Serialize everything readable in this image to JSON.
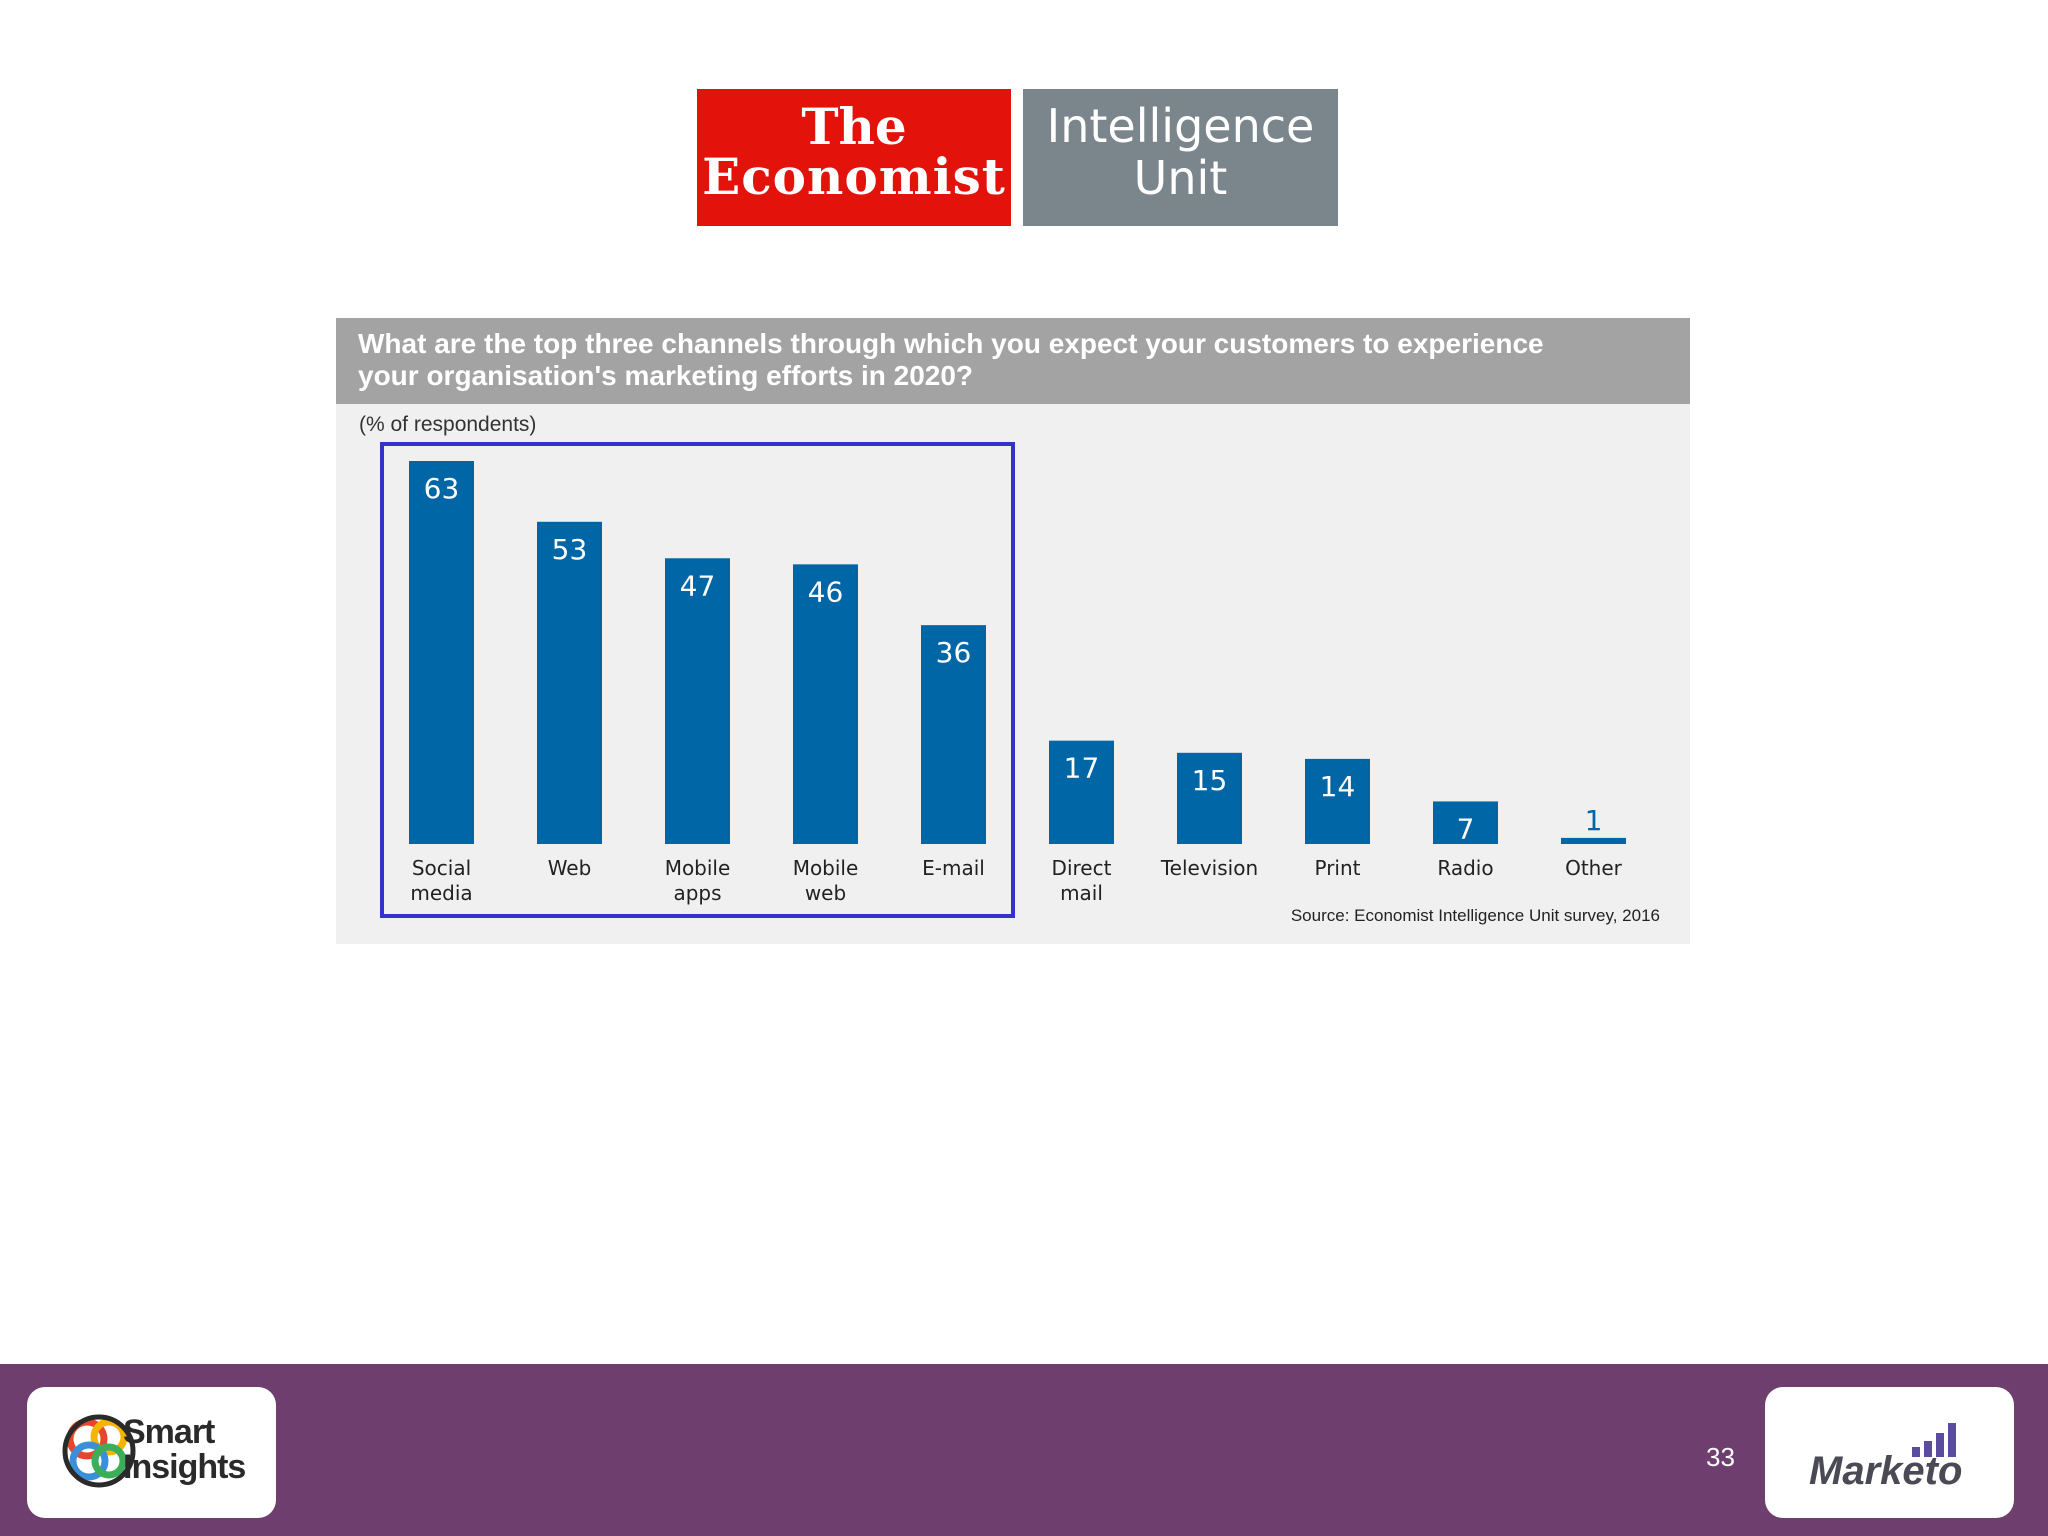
{
  "logo": {
    "left_line1": "The",
    "left_line2": "Economist",
    "right_line1": "Intelligence",
    "right_line2": "Unit",
    "red": "#e3120b",
    "grey": "#7b868c"
  },
  "chart_data": {
    "type": "bar",
    "title_line1": "What are the top three channels through which you expect your customers to experience",
    "title_line2": "your organisation's marketing efforts in 2020?",
    "unit_label": "(% of respondents)",
    "categories": [
      [
        "Social",
        "media"
      ],
      [
        "Web"
      ],
      [
        "Mobile",
        "apps"
      ],
      [
        "Mobile",
        "web"
      ],
      [
        "E-mail"
      ],
      [
        "Direct",
        "mail"
      ],
      [
        "Television"
      ],
      [
        "Print"
      ],
      [
        "Radio"
      ],
      [
        "Other"
      ]
    ],
    "values": [
      63,
      53,
      47,
      46,
      36,
      17,
      15,
      14,
      7,
      1
    ],
    "ylim": [
      0,
      63
    ],
    "highlighted_categories": [
      "Social media",
      "Web",
      "Mobile apps",
      "Mobile web",
      "E-mail"
    ],
    "source": "Source: Economist Intelligence Unit survey, 2016",
    "bar_color": "#0066a6",
    "highlight_color": "#3333cc"
  },
  "footer": {
    "brand_left_line1": "Smart",
    "brand_left_line2": "Insights",
    "brand_right": "Marketo",
    "page_number": "33",
    "background": "#6e3f6e"
  }
}
